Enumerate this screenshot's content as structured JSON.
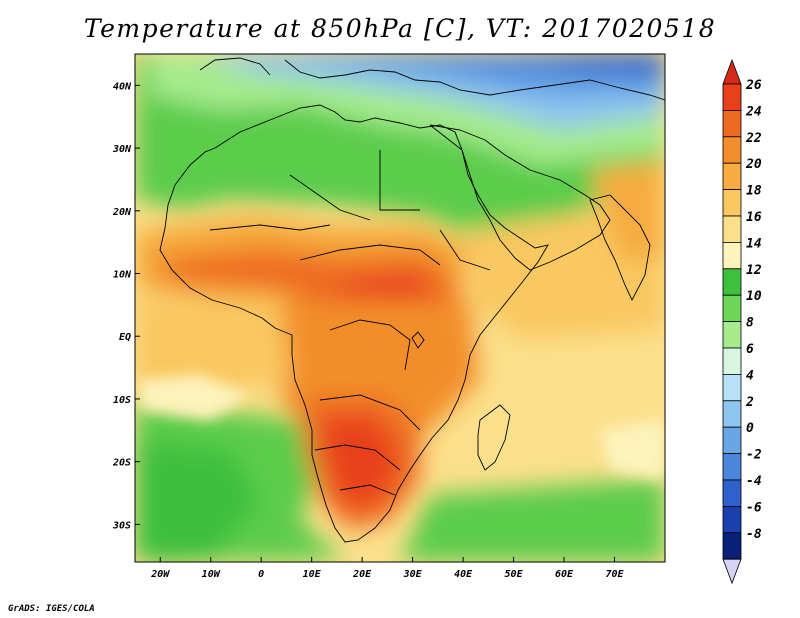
{
  "title": "Temperature at 850hPa [C], VT: 2017020518",
  "credit": "GrADS: IGES/COLA",
  "map": {
    "lon_range": [
      -25,
      80
    ],
    "lat_range": [
      -36,
      45
    ],
    "lat_ticks": [
      {
        "value": 40,
        "label": "40N"
      },
      {
        "value": 30,
        "label": "30N"
      },
      {
        "value": 20,
        "label": "20N"
      },
      {
        "value": 10,
        "label": "10N"
      },
      {
        "value": 0,
        "label": "EQ"
      },
      {
        "value": -10,
        "label": "10S"
      },
      {
        "value": -20,
        "label": "20S"
      },
      {
        "value": -30,
        "label": "30S"
      }
    ],
    "lon_ticks": [
      {
        "value": -20,
        "label": "20W"
      },
      {
        "value": -10,
        "label": "10W"
      },
      {
        "value": 0,
        "label": "0"
      },
      {
        "value": 10,
        "label": "10E"
      },
      {
        "value": 20,
        "label": "20E"
      },
      {
        "value": 30,
        "label": "30E"
      },
      {
        "value": 40,
        "label": "40E"
      },
      {
        "value": 50,
        "label": "50E"
      },
      {
        "value": 60,
        "label": "60E"
      },
      {
        "value": 70,
        "label": "70E"
      }
    ]
  },
  "colorbar": {
    "levels": [
      "26",
      "24",
      "22",
      "20",
      "18",
      "16",
      "14",
      "12",
      "10",
      "8",
      "6",
      "4",
      "2",
      "0",
      "-2",
      "-4",
      "-6",
      "-8"
    ],
    "colors": [
      "#e8401a",
      "#ee6a22",
      "#f28e2c",
      "#f6ac40",
      "#f9c860",
      "#fbe08c",
      "#fdf3bb",
      "#3ebf3e",
      "#6fd65a",
      "#a6eb8e",
      "#d8f7e2",
      "#b7e2f7",
      "#8fc6ef",
      "#6aa6e6",
      "#4b85dc",
      "#2f60cc",
      "#1a3fae",
      "#0a2078"
    ],
    "top_arrow_color": "#d62a18",
    "bottom_arrow_color": "#d6d2f4"
  }
}
